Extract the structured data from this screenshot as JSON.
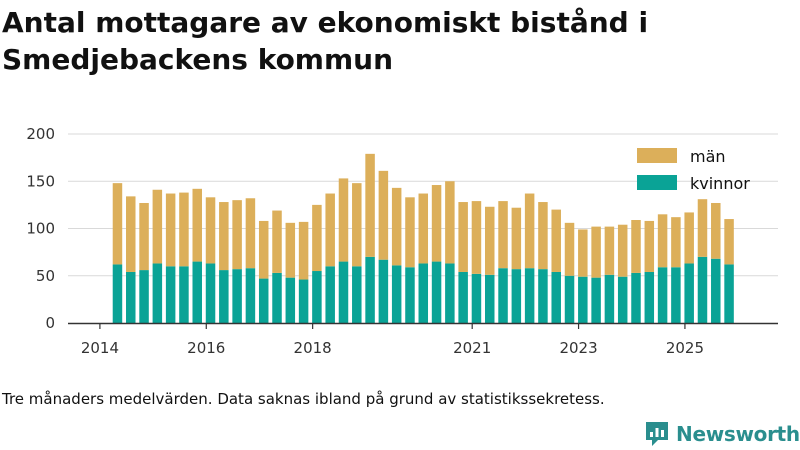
{
  "title": "Antal mottagare av ekonomiskt bistånd i Smedjebackens kommun",
  "footnote": "Tre månaders medelvärden. Data saknas ibland på grund av statistikssekretess.",
  "brand": {
    "name": "Newsworthy",
    "icon": "newsworthy-logo-icon",
    "color": "#2a8e8e"
  },
  "colors": {
    "man": "#dcaf5a",
    "kvinnor": "#0aa396",
    "grid": "#d9d9d9",
    "axis": "#333333"
  },
  "chart_data": {
    "type": "bar",
    "stacked": true,
    "title": "Antal mottagare av ekonomiskt bistånd i Smedjebackens kommun",
    "xlabel": "",
    "ylabel": "",
    "ylim": [
      0,
      200
    ],
    "yticks": [
      0,
      50,
      100,
      150,
      200
    ],
    "xlim": [
      2013.4,
      2026.75
    ],
    "xticks": [
      "2014",
      "2016",
      "2018",
      "2021",
      "2023",
      "2025"
    ],
    "xtick_values": [
      2014.0,
      2016.0,
      2018.0,
      2021.0,
      2023.0,
      2025.0
    ],
    "legend_position": "top-right",
    "x": [
      2014.33,
      2014.58,
      2014.83,
      2015.08,
      2015.33,
      2015.58,
      2015.83,
      2016.08,
      2016.33,
      2016.58,
      2016.83,
      2017.08,
      2017.33,
      2017.58,
      2017.83,
      2018.08,
      2018.33,
      2018.58,
      2018.83,
      2019.08,
      2019.33,
      2019.58,
      2019.83,
      2020.08,
      2020.33,
      2020.58,
      2020.83,
      2021.08,
      2021.33,
      2021.58,
      2021.83,
      2022.08,
      2022.33,
      2022.58,
      2022.83,
      2023.08,
      2023.33,
      2023.58,
      2023.83,
      2024.08,
      2024.33,
      2024.58,
      2024.83,
      2025.08,
      2025.33,
      2025.58,
      2025.83
    ],
    "series": [
      {
        "name": "kvinnor",
        "values": [
          62,
          54,
          56,
          63,
          60,
          60,
          65,
          63,
          56,
          57,
          58,
          47,
          53,
          48,
          46,
          55,
          60,
          65,
          60,
          70,
          67,
          61,
          59,
          63,
          65,
          63,
          54,
          52,
          51,
          58,
          57,
          58,
          57,
          54,
          50,
          49,
          48,
          51,
          49,
          53,
          54,
          59,
          59,
          63,
          70,
          68,
          62
        ]
      },
      {
        "name": "män",
        "values": [
          86,
          80,
          71,
          78,
          77,
          78,
          77,
          70,
          72,
          73,
          74,
          61,
          66,
          58,
          61,
          70,
          77,
          88,
          88,
          109,
          94,
          82,
          74,
          74,
          81,
          87,
          74,
          77,
          72,
          71,
          65,
          79,
          71,
          66,
          56,
          50,
          54,
          51,
          55,
          56,
          54,
          56,
          53,
          54,
          61,
          59,
          48
        ]
      }
    ]
  }
}
